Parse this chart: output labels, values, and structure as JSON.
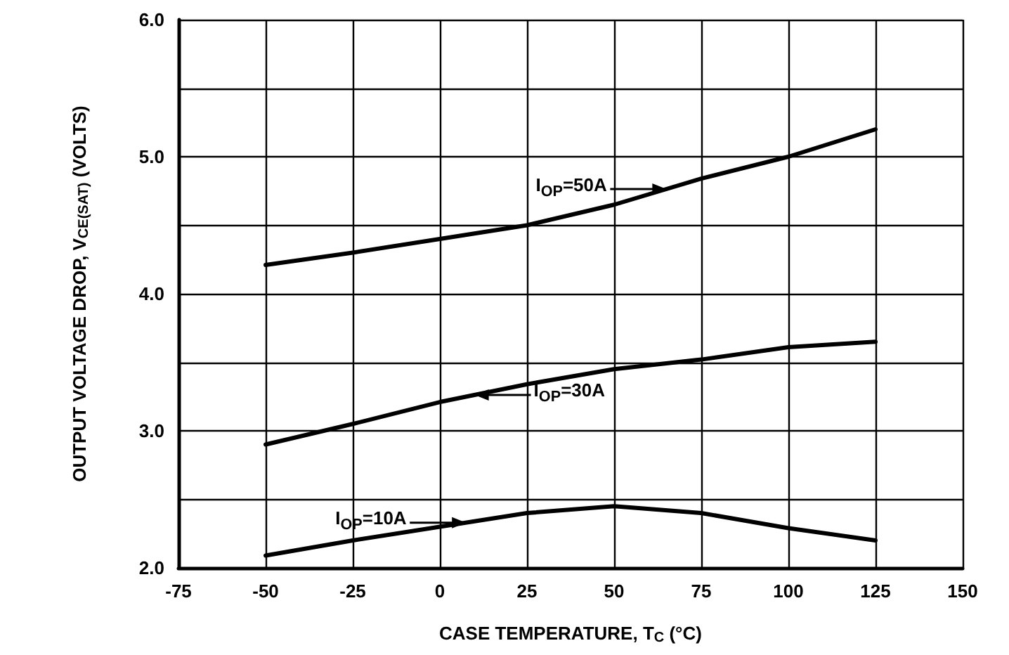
{
  "chart_data": {
    "type": "line",
    "xlabel": "CASE TEMPERATURE, T$_{C}$ (°C)",
    "ylabel": "OUTPUT VOLTAGE DROP, V$_{CE(SAT)}$ (VOLTS)",
    "x": [
      -50,
      -25,
      0,
      25,
      50,
      75,
      100,
      125
    ],
    "series": [
      {
        "name": "I$_{OP}$=50A",
        "color": "#000000",
        "values": [
          4.21,
          4.3,
          4.4,
          4.5,
          4.65,
          4.84,
          5.0,
          5.2
        ]
      },
      {
        "name": "I$_{OP}$=30A",
        "color": "#000000",
        "values": [
          2.9,
          3.05,
          3.21,
          3.34,
          3.45,
          3.52,
          3.61,
          3.65
        ]
      },
      {
        "name": "I$_{OP}$=10A",
        "color": "#000000",
        "values": [
          2.09,
          2.2,
          2.3,
          2.4,
          2.45,
          2.4,
          2.29,
          2.2
        ]
      }
    ],
    "xlim": [
      -75,
      150
    ],
    "xticks": [
      -75,
      -50,
      -25,
      0,
      25,
      50,
      75,
      100,
      125,
      150
    ],
    "ylim": [
      2.0,
      6.0
    ],
    "yticks": [
      {
        "value": 2.0,
        "label": "2.0"
      },
      {
        "value": 2.5,
        "label": null
      },
      {
        "value": 3.0,
        "label": "3.0"
      },
      {
        "value": 3.5,
        "label": null
      },
      {
        "value": 4.0,
        "label": "4.0"
      },
      {
        "value": 4.5,
        "label": null
      },
      {
        "value": 5.0,
        "label": "5.0"
      },
      {
        "value": 5.5,
        "label": null
      },
      {
        "value": 6.0,
        "label": "6.0"
      }
    ],
    "grid": true,
    "marker": "none",
    "line_style": "solid",
    "legend": "center"
  }
}
